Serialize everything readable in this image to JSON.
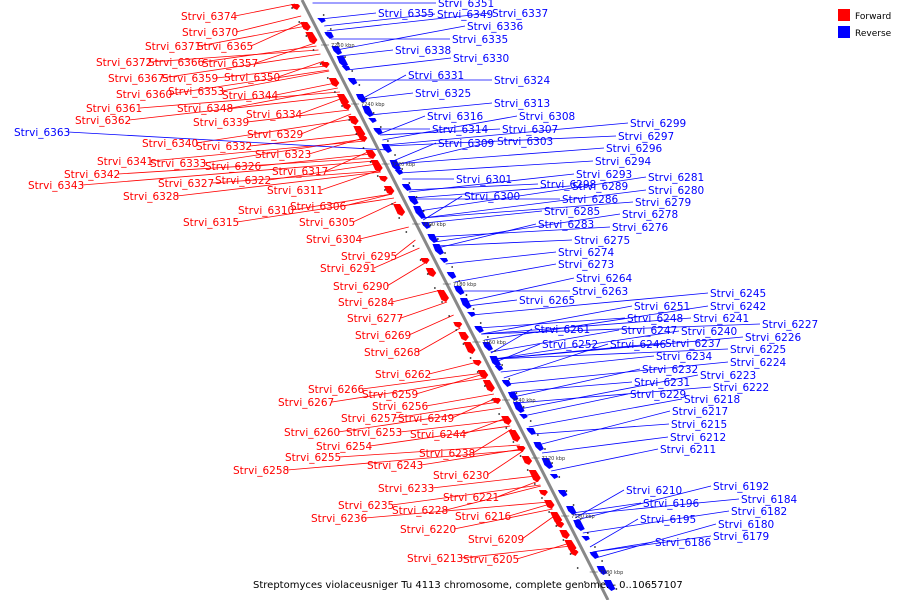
{
  "caption": "Streptomyces violaceusniger Tu 4113 chromosome, complete genome. - 0..10657107",
  "legend": [
    {
      "label": "Forward",
      "color": "#ff0000"
    },
    {
      "label": "Reverse",
      "color": "#0000ff"
    }
  ],
  "ticks": [
    "7260 kbp",
    "7240 kbp",
    "7220 kbp",
    "7200 kbp",
    "7180 kbp",
    "7160 kbp",
    "7140 kbp",
    "7120 kbp",
    "7100 kbp",
    "7080 kbp"
  ],
  "forward_labels": [
    "Strvi_6374",
    "Strvi_6370",
    "Strvi_6371",
    "Strvi_6365",
    "Strvi_6372",
    "Strvi_6366",
    "Strvi_6357",
    "Strvi_6367",
    "Strvi_6359",
    "Strvi_6350",
    "Strvi_6353",
    "Strvi_6360",
    "Strvi_6344",
    "Strvi_6361",
    "Strvi_6348",
    "Strvi_6362",
    "Strvi_6339",
    "Strvi_6334",
    "Strvi_6329",
    "Strvi_6340",
    "Strvi_6332",
    "Strvi_6323",
    "Strvi_6341",
    "Strvi_6333",
    "Strvi_6326",
    "Strvi_6342",
    "Strvi_6317",
    "Strvi_6343",
    "Strvi_6327",
    "Strvi_6322",
    "Strvi_6311",
    "Strvi_6328",
    "Strvi_6306",
    "Strvi_6310",
    "Strvi_6305",
    "Strvi_6315",
    "Strvi_6304",
    "Strvi_6295",
    "Strvi_6291",
    "Strvi_6290",
    "Strvi_6284",
    "Strvi_6277",
    "Strvi_6269",
    "Strvi_6268",
    "Strvi_6262",
    "Strvi_6266",
    "Strvi_6259",
    "Strvi_6267",
    "Strvi_6256",
    "Strvi_6257",
    "Strvi_6249",
    "Strvi_6260",
    "Strvi_6253",
    "Strvi_6244",
    "Strvi_6254",
    "Strvi_6238",
    "Strvi_6255",
    "Strvi_6243",
    "Strvi_6258",
    "Strvi_6230",
    "Strvi_6233",
    "Strvi_6221",
    "Strvi_6235",
    "Strvi_6228",
    "Strvi_6216",
    "Strvi_6236",
    "Strvi_6220",
    "Strvi_6209",
    "Strvi_6213",
    "Strvi_6205"
  ],
  "reverse_labels": [
    "Strvi_6351",
    "Strvi_6355",
    "Strvi_6349",
    "Strvi_6337",
    "Strvi_6336",
    "Strvi_6335",
    "Strvi_6338",
    "Strvi_6330",
    "Strvi_6363",
    "Strvi_6331",
    "Strvi_6324",
    "Strvi_6325",
    "Strvi_6313",
    "Strvi_6316",
    "Strvi_6308",
    "Strvi_6314",
    "Strvi_6307",
    "Strvi_6299",
    "Strvi_6309",
    "Strvi_6303",
    "Strvi_6297",
    "Strvi_6296",
    "Strvi_6294",
    "Strvi_6293",
    "Strvi_6281",
    "Strvi_6301",
    "Strvi_6298",
    "Strvi_6289",
    "Strvi_6280",
    "Strvi_6300",
    "Strvi_6286",
    "Strvi_6279",
    "Strvi_6285",
    "Strvi_6278",
    "Strvi_6283",
    "Strvi_6276",
    "Strvi_6275",
    "Strvi_6274",
    "Strvi_6273",
    "Strvi_6264",
    "Strvi_6263",
    "Strvi_6265",
    "Strvi_6245",
    "Strvi_6251",
    "Strvi_6242",
    "Strvi_6248",
    "Strvi_6241",
    "Strvi_6247",
    "Strvi_6240",
    "Strvi_6261",
    "Strvi_6227",
    "Strvi_6237",
    "Strvi_6226",
    "Strvi_6252",
    "Strvi_6246",
    "Strvi_6225",
    "Strvi_6234",
    "Strvi_6224",
    "Strvi_6232",
    "Strvi_6223",
    "Strvi_6231",
    "Strvi_6222",
    "Strvi_6229",
    "Strvi_6218",
    "Strvi_6217",
    "Strvi_6215",
    "Strvi_6212",
    "Strvi_6211",
    "Strvi_6210",
    "Strvi_6192",
    "Strvi_6196",
    "Strvi_6184",
    "Strvi_6182",
    "Strvi_6195",
    "Strvi_6180",
    "Strvi_6186",
    "Strvi_6179"
  ]
}
